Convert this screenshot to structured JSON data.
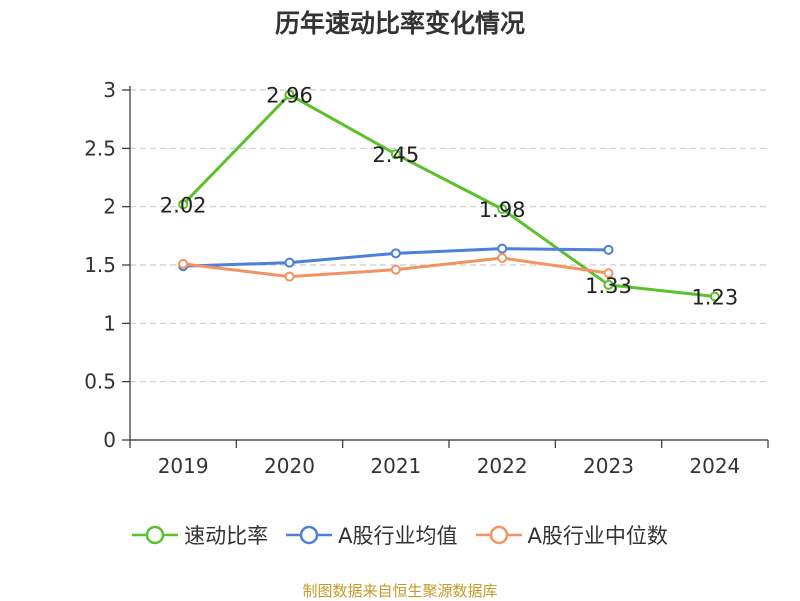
{
  "chart_data": {
    "type": "line",
    "title": "历年速动比率变化情况",
    "categories": [
      "2019",
      "2020",
      "2021",
      "2022",
      "2023",
      "2024"
    ],
    "ylim": [
      0,
      3
    ],
    "yticks": [
      0,
      0.5,
      1,
      1.5,
      2,
      2.5,
      3
    ],
    "ytick_labels": [
      "0",
      "0.5",
      "1",
      "1.5",
      "2",
      "2.5",
      "3"
    ],
    "grid": true,
    "legend_position": "bottom",
    "series": [
      {
        "name": "速动比率",
        "color": "#5ac12c",
        "values": [
          2.02,
          2.96,
          2.45,
          1.98,
          1.33,
          1.23
        ],
        "labels": [
          "2.02",
          "2.96",
          "2.45",
          "1.98",
          "1.33",
          "1.23"
        ]
      },
      {
        "name": "A股行业均值",
        "color": "#4e7fd9",
        "values": [
          1.49,
          1.52,
          1.6,
          1.64,
          1.63,
          null
        ]
      },
      {
        "name": "A股行业中位数",
        "color": "#f39262",
        "values": [
          1.51,
          1.4,
          1.46,
          1.56,
          1.43,
          null
        ]
      }
    ]
  },
  "source": "制图数据来自恒生聚源数据库"
}
